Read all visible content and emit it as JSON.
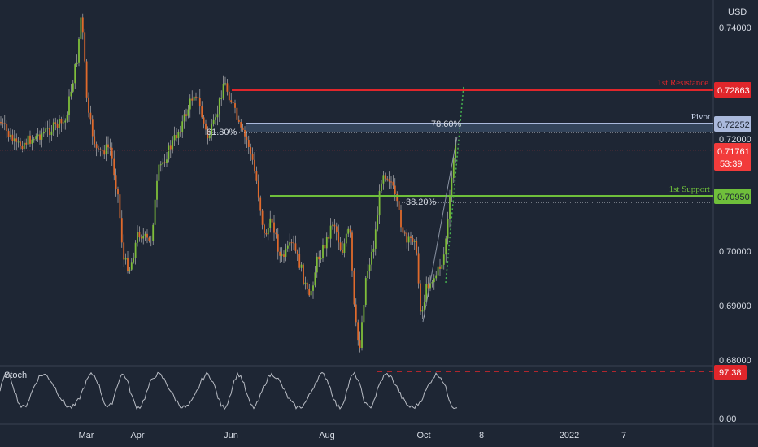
{
  "chart_data": {
    "type": "candlestick",
    "currency_label": "USD",
    "y_ticks": [
      "0.74000",
      "0.72000",
      "0.70000",
      "0.69000",
      "0.68000"
    ],
    "x_ticks": [
      "Mar",
      "Apr",
      "Jun",
      "Aug",
      "Oct",
      "8",
      "2022",
      "7"
    ],
    "levels": {
      "resistance": {
        "name": "1st Resistance",
        "value": "0.72863",
        "color": "#e0262b"
      },
      "pivot": {
        "name": "Pivot",
        "value": "0.72252",
        "color": "#aab9dc"
      },
      "support": {
        "name": "1st Support",
        "value": "0.70950",
        "color": "#6fbf3b"
      }
    },
    "current_price": {
      "value": "0.71761",
      "countdown": "53:39",
      "color": "#f23b3b"
    },
    "fib_labels": {
      "a": "78.60%",
      "b": "61.80%",
      "c": "38.20%"
    },
    "oscillator": {
      "name": "Stoch",
      "value": "97.38",
      "zero_label": "0.00",
      "color": "#e0262b"
    },
    "colors": {
      "background": "#1e2634",
      "bull": "#7fbe3a",
      "bear": "#e06a2c",
      "wick": "#c8c8c8"
    }
  }
}
